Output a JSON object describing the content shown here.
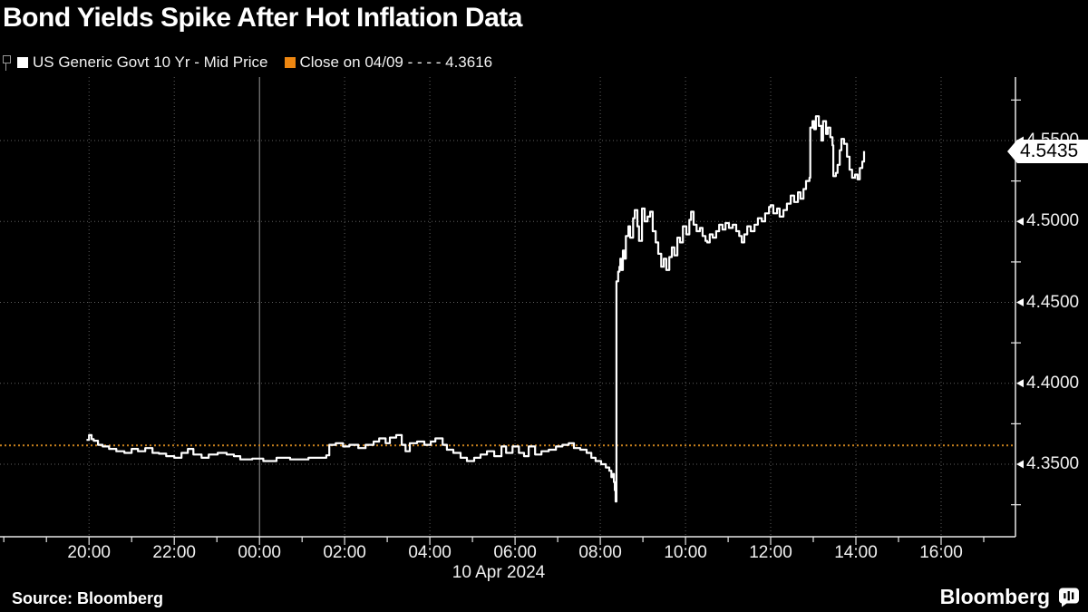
{
  "title": "Bond Yields Spike After Hot Inflation Data",
  "legend": {
    "series": {
      "label": "US Generic Govt 10 Yr - Mid Price",
      "swatch_color": "#ffffff"
    },
    "close": {
      "label": "Close on 04/09 - - - - 4.3616",
      "swatch_color": "#ee8711"
    }
  },
  "footer": {
    "source": "Source: Bloomberg",
    "brand": "Bloomberg"
  },
  "chart_data": {
    "type": "line",
    "line_style": "step",
    "series_name": "US Generic Govt 10 Yr - Mid Price",
    "x_axis": {
      "date_label": "10 Apr 2024",
      "tick_labels": [
        "20:00",
        "22:00",
        "00:00",
        "02:00",
        "04:00",
        "06:00",
        "08:00",
        "10:00",
        "12:00",
        "14:00",
        "16:00"
      ],
      "tick_hours": [
        20,
        22,
        24,
        26,
        28,
        30,
        32,
        34,
        36,
        38,
        40
      ],
      "solid_gridline_hour": 24,
      "minor_tick_hours_range": [
        18,
        41
      ],
      "range_hours": [
        17.91,
        41.745
      ],
      "note_hours": "hours from 00:00 Apr 9; 24 = midnight start of 10 Apr 2024"
    },
    "y_axis": {
      "side": "right",
      "tick_labels": [
        "4.5500",
        "4.5000",
        "4.4500",
        "4.4000",
        "4.3500"
      ],
      "tick_values": [
        4.55,
        4.5,
        4.45,
        4.4,
        4.35
      ],
      "minor_tick_values": [
        4.575,
        4.525,
        4.475,
        4.425,
        4.375,
        4.325
      ],
      "range": [
        4.3052,
        4.5892
      ]
    },
    "close_line": {
      "label": "Close on 04/09",
      "value": 4.3616,
      "color": "#c8801c",
      "style": "dotted"
    },
    "last_price": {
      "value": 4.5435,
      "label": "4.5435"
    },
    "colors": {
      "series": "#ffffff",
      "grid": "#5f5f5f",
      "midnight_line": "#9a9a9a",
      "axis": "#e8e8e8"
    },
    "points": [
      [
        19.94,
        4.365
      ],
      [
        20.0,
        4.368
      ],
      [
        20.06,
        4.3655
      ],
      [
        20.11,
        4.3645
      ],
      [
        20.21,
        4.362
      ],
      [
        20.32,
        4.361
      ],
      [
        20.47,
        4.3595
      ],
      [
        20.64,
        4.358
      ],
      [
        20.83,
        4.357
      ],
      [
        21.0,
        4.3595
      ],
      [
        21.15,
        4.358
      ],
      [
        21.32,
        4.36
      ],
      [
        21.49,
        4.357
      ],
      [
        21.64,
        4.3565
      ],
      [
        21.81,
        4.355
      ],
      [
        22.0,
        4.354
      ],
      [
        22.17,
        4.357
      ],
      [
        22.32,
        4.3595
      ],
      [
        22.45,
        4.356
      ],
      [
        22.64,
        4.354
      ],
      [
        22.81,
        4.356
      ],
      [
        23.02,
        4.357
      ],
      [
        23.23,
        4.356
      ],
      [
        23.4,
        4.355
      ],
      [
        23.55,
        4.353
      ],
      [
        23.83,
        4.3535
      ],
      [
        24.09,
        4.352
      ],
      [
        24.4,
        4.354
      ],
      [
        24.72,
        4.353
      ],
      [
        25.15,
        4.354
      ],
      [
        25.47,
        4.354
      ],
      [
        25.57,
        4.3555
      ],
      [
        25.64,
        4.362
      ],
      [
        25.79,
        4.363
      ],
      [
        25.96,
        4.361
      ],
      [
        26.11,
        4.362
      ],
      [
        26.32,
        4.36
      ],
      [
        26.49,
        4.362
      ],
      [
        26.68,
        4.364
      ],
      [
        26.81,
        4.366
      ],
      [
        26.96,
        4.363
      ],
      [
        27.06,
        4.3665
      ],
      [
        27.21,
        4.368
      ],
      [
        27.34,
        4.362
      ],
      [
        27.43,
        4.358
      ],
      [
        27.53,
        4.363
      ],
      [
        27.7,
        4.364
      ],
      [
        27.87,
        4.362
      ],
      [
        28.02,
        4.364
      ],
      [
        28.13,
        4.366
      ],
      [
        28.3,
        4.362
      ],
      [
        28.4,
        4.359
      ],
      [
        28.55,
        4.357
      ],
      [
        28.72,
        4.354
      ],
      [
        28.87,
        4.352
      ],
      [
        29.04,
        4.354
      ],
      [
        29.19,
        4.356
      ],
      [
        29.34,
        4.358
      ],
      [
        29.51,
        4.355
      ],
      [
        29.68,
        4.361
      ],
      [
        29.79,
        4.357
      ],
      [
        29.94,
        4.361
      ],
      [
        30.09,
        4.357
      ],
      [
        30.21,
        4.355
      ],
      [
        30.32,
        4.361
      ],
      [
        30.47,
        4.356
      ],
      [
        30.62,
        4.358
      ],
      [
        30.79,
        4.359
      ],
      [
        30.96,
        4.361
      ],
      [
        31.11,
        4.362
      ],
      [
        31.26,
        4.363
      ],
      [
        31.38,
        4.36
      ],
      [
        31.53,
        4.359
      ],
      [
        31.68,
        4.357
      ],
      [
        31.79,
        4.354
      ],
      [
        31.89,
        4.352
      ],
      [
        32.02,
        4.35
      ],
      [
        32.13,
        4.348
      ],
      [
        32.21,
        4.346
      ],
      [
        32.26,
        4.342
      ],
      [
        32.3,
        4.344
      ],
      [
        32.32,
        4.339
      ],
      [
        32.34,
        4.334
      ],
      [
        32.36,
        4.327
      ],
      [
        32.38,
        4.463
      ],
      [
        32.42,
        4.469
      ],
      [
        32.45,
        4.472
      ],
      [
        32.47,
        4.477
      ],
      [
        32.49,
        4.47
      ],
      [
        32.53,
        4.482
      ],
      [
        32.57,
        4.477
      ],
      [
        32.6,
        4.491
      ],
      [
        32.66,
        4.497
      ],
      [
        32.7,
        4.49
      ],
      [
        32.77,
        4.502
      ],
      [
        32.81,
        4.507
      ],
      [
        32.87,
        4.497
      ],
      [
        32.91,
        4.488
      ],
      [
        32.98,
        4.508
      ],
      [
        33.04,
        4.5
      ],
      [
        33.11,
        4.503
      ],
      [
        33.17,
        4.506
      ],
      [
        33.23,
        4.494
      ],
      [
        33.3,
        4.487
      ],
      [
        33.36,
        4.48
      ],
      [
        33.43,
        4.472
      ],
      [
        33.49,
        4.477
      ],
      [
        33.55,
        4.47
      ],
      [
        33.62,
        4.478
      ],
      [
        33.68,
        4.484
      ],
      [
        33.74,
        4.479
      ],
      [
        33.81,
        4.49
      ],
      [
        33.87,
        4.487
      ],
      [
        33.94,
        4.497
      ],
      [
        34.02,
        4.492
      ],
      [
        34.09,
        4.501
      ],
      [
        34.13,
        4.506
      ],
      [
        34.19,
        4.498
      ],
      [
        34.26,
        4.494
      ],
      [
        34.34,
        4.496
      ],
      [
        34.4,
        4.491
      ],
      [
        34.47,
        4.488
      ],
      [
        34.51,
        4.487
      ],
      [
        34.57,
        4.492
      ],
      [
        34.64,
        4.49
      ],
      [
        34.72,
        4.494
      ],
      [
        34.79,
        4.498
      ],
      [
        34.87,
        4.495
      ],
      [
        34.94,
        4.499
      ],
      [
        35.02,
        4.496
      ],
      [
        35.11,
        4.498
      ],
      [
        35.19,
        4.494
      ],
      [
        35.26,
        4.491
      ],
      [
        35.32,
        4.487
      ],
      [
        35.38,
        4.492
      ],
      [
        35.45,
        4.497
      ],
      [
        35.53,
        4.494
      ],
      [
        35.62,
        4.498
      ],
      [
        35.7,
        4.502
      ],
      [
        35.79,
        4.5
      ],
      [
        35.87,
        4.505
      ],
      [
        35.96,
        4.509
      ],
      [
        36.0,
        4.51
      ],
      [
        36.06,
        4.505
      ],
      [
        36.15,
        4.508
      ],
      [
        36.21,
        4.503
      ],
      [
        36.3,
        4.507
      ],
      [
        36.38,
        4.511
      ],
      [
        36.47,
        4.516
      ],
      [
        36.55,
        4.512
      ],
      [
        36.64,
        4.518
      ],
      [
        36.7,
        4.514
      ],
      [
        36.77,
        4.52
      ],
      [
        36.83,
        4.525
      ],
      [
        36.91,
        4.527
      ],
      [
        36.93,
        4.558
      ],
      [
        36.98,
        4.562
      ],
      [
        37.02,
        4.557
      ],
      [
        37.06,
        4.565
      ],
      [
        37.13,
        4.559
      ],
      [
        37.19,
        4.55
      ],
      [
        37.23,
        4.562
      ],
      [
        37.3,
        4.554
      ],
      [
        37.34,
        4.558
      ],
      [
        37.4,
        4.552
      ],
      [
        37.45,
        4.547
      ],
      [
        37.47,
        4.528
      ],
      [
        37.53,
        4.53
      ],
      [
        37.57,
        4.535
      ],
      [
        37.62,
        4.544
      ],
      [
        37.66,
        4.551
      ],
      [
        37.72,
        4.548
      ],
      [
        37.79,
        4.54
      ],
      [
        37.85,
        4.532
      ],
      [
        37.91,
        4.527
      ],
      [
        37.98,
        4.529
      ],
      [
        38.04,
        4.526
      ],
      [
        38.09,
        4.533
      ],
      [
        38.15,
        4.537
      ],
      [
        38.19,
        4.5435
      ]
    ]
  }
}
